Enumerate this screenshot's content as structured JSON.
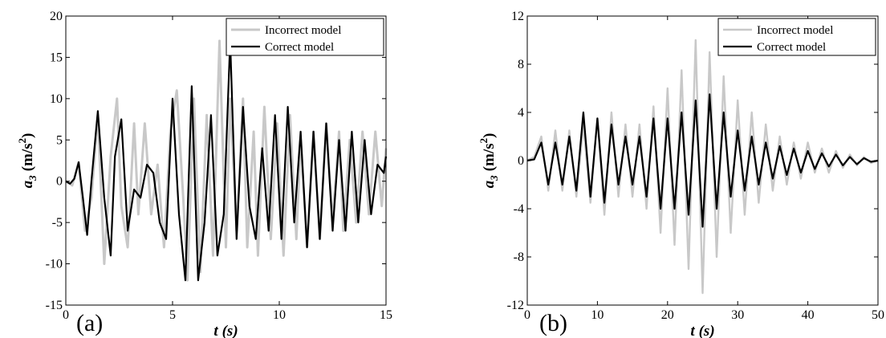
{
  "chart_data": [
    {
      "type": "line",
      "panel_label": "(a)",
      "xlabel_var": "t",
      "xlabel_unit": "(s)",
      "ylabel_var": "a",
      "ylabel_sub": "3",
      "ylabel_unit_pre": "(m/s",
      "ylabel_unit_sup": "2",
      "ylabel_unit_post": ")",
      "xlim": [
        0,
        15
      ],
      "ylim": [
        -15,
        20
      ],
      "xticks": [
        0,
        5,
        10,
        15
      ],
      "yticks": [
        -15,
        -10,
        -5,
        0,
        5,
        10,
        15,
        20
      ],
      "legend_position": "top-right",
      "series": [
        {
          "name": "Incorrect model",
          "color": "#c8c8c8",
          "x": [
            0,
            0.3,
            0.6,
            0.9,
            1.2,
            1.5,
            1.8,
            2.1,
            2.4,
            2.6,
            2.9,
            3.2,
            3.4,
            3.7,
            4.0,
            4.3,
            4.6,
            4.9,
            5.2,
            5.5,
            5.7,
            6.0,
            6.3,
            6.6,
            6.9,
            7.2,
            7.5,
            7.7,
            8.0,
            8.3,
            8.5,
            8.8,
            9.0,
            9.3,
            9.6,
            9.9,
            10.2,
            10.5,
            10.8,
            11.0,
            11.3,
            11.6,
            11.9,
            12.2,
            12.5,
            12.8,
            13.0,
            13.3,
            13.6,
            13.9,
            14.2,
            14.5,
            14.8,
            15.0
          ],
          "y": [
            0,
            -0.5,
            2.3,
            -6,
            -2,
            8,
            -10,
            3,
            10,
            -3,
            -8,
            7,
            -4,
            7,
            -4,
            2,
            -8,
            6,
            11,
            -2,
            -12,
            10,
            -11,
            8,
            -9,
            17,
            -8,
            10,
            -6,
            10,
            -8,
            6,
            -9,
            9,
            -7,
            7,
            -9,
            8,
            -7,
            5,
            -8,
            6,
            -7,
            7,
            -5,
            6,
            -6,
            5,
            -5,
            6,
            -4,
            6,
            -3,
            4
          ]
        },
        {
          "name": "Correct model",
          "color": "#000000",
          "x": [
            0,
            0.2,
            0.4,
            0.6,
            0.8,
            1.0,
            1.2,
            1.5,
            1.8,
            2.1,
            2.3,
            2.6,
            2.9,
            3.2,
            3.5,
            3.8,
            4.1,
            4.4,
            4.7,
            5.0,
            5.3,
            5.6,
            5.9,
            6.2,
            6.5,
            6.8,
            7.1,
            7.4,
            7.7,
            8.0,
            8.3,
            8.6,
            8.9,
            9.2,
            9.5,
            9.8,
            10.1,
            10.4,
            10.7,
            11.0,
            11.3,
            11.6,
            11.9,
            12.2,
            12.5,
            12.8,
            13.1,
            13.4,
            13.7,
            14.0,
            14.3,
            14.6,
            14.9,
            15.0
          ],
          "y": [
            0,
            -0.3,
            0.3,
            2.3,
            -2,
            -6.5,
            0,
            8.5,
            -2,
            -9,
            3,
            7.5,
            -6,
            -1,
            -2,
            2,
            1,
            -5,
            -7,
            10,
            -4,
            -12,
            11.5,
            -12,
            -5,
            8,
            -9,
            -4,
            17,
            -7,
            9,
            -3,
            -7,
            4,
            -6,
            8,
            -7,
            9,
            -5,
            6,
            -8,
            6,
            -7,
            7,
            -6,
            5,
            -6,
            6,
            -5,
            5,
            -4,
            2,
            1,
            3
          ]
        }
      ]
    },
    {
      "type": "line",
      "panel_label": "(b)",
      "xlabel_var": "t",
      "xlabel_unit": "(s)",
      "ylabel_var": "a",
      "ylabel_sub": "3",
      "ylabel_unit_pre": "(m/s",
      "ylabel_unit_sup": "2",
      "ylabel_unit_post": ")",
      "xlim": [
        0,
        50
      ],
      "ylim": [
        -12,
        12
      ],
      "xticks": [
        0,
        10,
        20,
        30,
        40,
        50
      ],
      "yticks": [
        -12,
        -8,
        -4,
        0,
        4,
        8,
        12
      ],
      "legend_position": "top-right",
      "series": [
        {
          "name": "Incorrect model",
          "color": "#c8c8c8",
          "x": [
            0,
            1,
            2,
            3,
            4,
            5,
            6,
            7,
            8,
            9,
            10,
            11,
            12,
            13,
            14,
            15,
            16,
            17,
            18,
            19,
            20,
            21,
            22,
            23,
            24,
            25,
            26,
            27,
            28,
            29,
            30,
            31,
            32,
            33,
            34,
            35,
            36,
            37,
            38,
            39,
            40,
            41,
            42,
            43,
            44,
            45,
            46,
            47,
            48,
            49,
            50
          ],
          "y": [
            0,
            0.3,
            2,
            -2.5,
            2.5,
            -2.5,
            2.5,
            -3,
            3,
            -3.5,
            3.5,
            -4.5,
            4,
            -3,
            3,
            -3,
            3,
            -4,
            4.5,
            -6,
            6,
            -7,
            7.5,
            -9,
            10,
            -11,
            9,
            -8,
            7,
            -6,
            5,
            -4.5,
            4,
            -3.5,
            3,
            -2.5,
            2,
            -2,
            1.5,
            -1.5,
            1.5,
            -1,
            1,
            -1,
            0.8,
            -0.6,
            0.5,
            -0.4,
            0.3,
            -0.2,
            0
          ]
        },
        {
          "name": "Correct model",
          "color": "#000000",
          "x": [
            0,
            1,
            2,
            3,
            4,
            5,
            6,
            7,
            8,
            9,
            10,
            11,
            12,
            13,
            14,
            15,
            16,
            17,
            18,
            19,
            20,
            21,
            22,
            23,
            24,
            25,
            26,
            27,
            28,
            29,
            30,
            31,
            32,
            33,
            34,
            35,
            36,
            37,
            38,
            39,
            40,
            41,
            42,
            43,
            44,
            45,
            46,
            47,
            48,
            49,
            50
          ],
          "y": [
            0,
            0.1,
            1.5,
            -2,
            1.5,
            -2,
            2,
            -2.5,
            4,
            -3,
            3.5,
            -3.5,
            3,
            -2,
            2,
            -2,
            2,
            -3,
            3.5,
            -4,
            3.5,
            -4,
            4,
            -4.5,
            5,
            -5.5,
            5.5,
            -4,
            4,
            -3,
            2.5,
            -2.5,
            2,
            -2,
            1.5,
            -1.5,
            1.2,
            -1.2,
            1,
            -1,
            0.8,
            -0.7,
            0.6,
            -0.5,
            0.5,
            -0.4,
            0.3,
            -0.3,
            0.2,
            -0.1,
            0
          ]
        }
      ]
    }
  ]
}
